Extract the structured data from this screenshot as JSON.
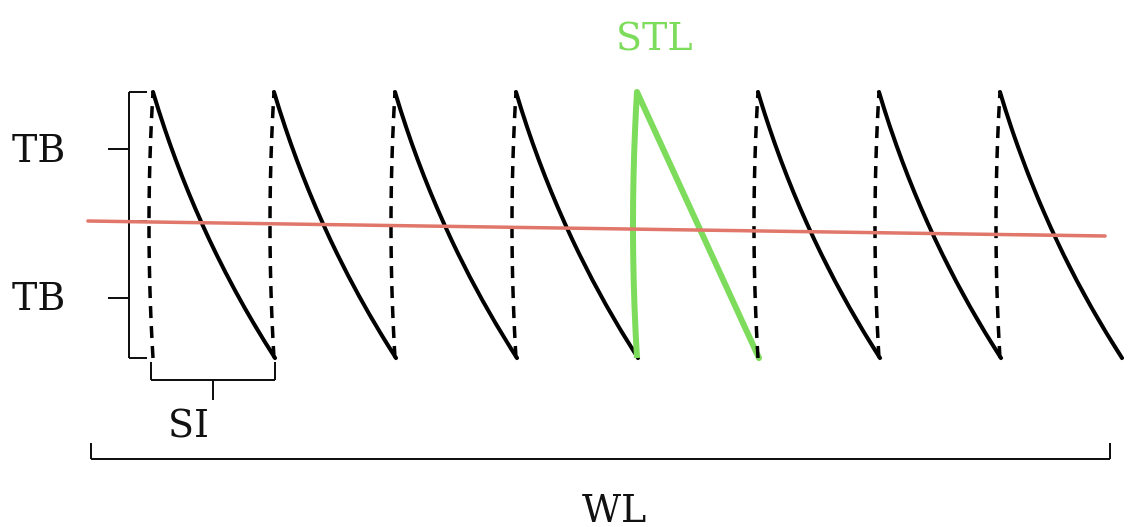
{
  "labels": {
    "tb_upper": "TB",
    "tb_lower": "TB",
    "stl": "STL",
    "si": "SI",
    "wl": "WL"
  },
  "diagram": {
    "wave_count": 8,
    "highlighted_index": 4,
    "colors": {
      "wave": "#000000",
      "highlight": "#7ddc5b",
      "trend_line": "#e0776a",
      "bracket": "#111111"
    }
  }
}
